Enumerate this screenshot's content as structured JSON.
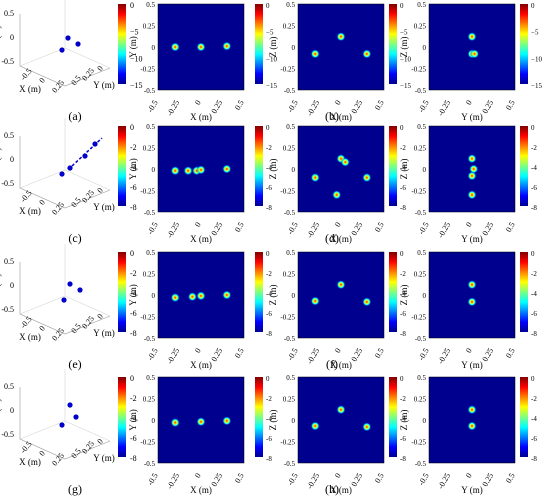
{
  "figure": {
    "rows": [
      {
        "id": "row-1",
        "labels": [
          "(a)",
          "(b)"
        ],
        "colorbar_ticks": [
          "0",
          "−5",
          "−10",
          "−15"
        ],
        "colorbar_range": [
          -15,
          0
        ],
        "projections": [
          {
            "xlabel": "X (m)",
            "ylabel": "Y (m)",
            "points": [
              [
                -0.3,
                0.0
              ],
              [
                0.0,
                0.0
              ],
              [
                0.3,
                0.01
              ]
            ]
          },
          {
            "xlabel": "X (m)",
            "ylabel": "Z (m)",
            "points": [
              [
                -0.3,
                -0.08
              ],
              [
                0.0,
                0.12
              ],
              [
                0.3,
                -0.08
              ]
            ]
          },
          {
            "xlabel": "Y (m)",
            "ylabel": "Z (m)",
            "points": [
              [
                0.0,
                0.12
              ],
              [
                0.0,
                -0.08
              ],
              [
                0.03,
                -0.08
              ]
            ]
          }
        ]
      },
      {
        "id": "row-2",
        "labels": [
          "(c)",
          "(d)"
        ],
        "colorbar_ticks": [
          "0",
          "-2",
          "-4",
          "-6",
          "-8"
        ],
        "colorbar_range": [
          -8,
          0
        ],
        "projections": [
          {
            "xlabel": "X (m)",
            "ylabel": "Y (m)",
            "points": [
              [
                -0.3,
                -0.02
              ],
              [
                -0.05,
                -0.02
              ],
              [
                0.0,
                -0.01
              ],
              [
                0.3,
                0.0
              ],
              [
                -0.15,
                -0.02
              ]
            ]
          },
          {
            "xlabel": "X (m)",
            "ylabel": "Z (m)",
            "points": [
              [
                -0.3,
                -0.1
              ],
              [
                0.0,
                0.12
              ],
              [
                0.3,
                -0.1
              ],
              [
                0.05,
                0.08
              ],
              [
                -0.05,
                -0.3
              ]
            ]
          },
          {
            "xlabel": "Y (m)",
            "ylabel": "Z (m)",
            "points": [
              [
                0.0,
                0.12
              ],
              [
                0.0,
                -0.08
              ],
              [
                0.02,
                0.0
              ],
              [
                0.0,
                -0.3
              ]
            ]
          }
        ]
      },
      {
        "id": "row-3",
        "labels": [
          "(e)",
          "(f)"
        ],
        "colorbar_ticks": [
          "0",
          "-2",
          "-4",
          "-6",
          "-8"
        ],
        "colorbar_range": [
          -8,
          0
        ],
        "projections": [
          {
            "xlabel": "X (m)",
            "ylabel": "Y (m)",
            "points": [
              [
                -0.3,
                -0.03
              ],
              [
                -0.1,
                -0.02
              ],
              [
                0.0,
                -0.01
              ],
              [
                0.3,
                0.0
              ]
            ]
          },
          {
            "xlabel": "X (m)",
            "ylabel": "Z (m)",
            "points": [
              [
                -0.3,
                -0.07
              ],
              [
                0.0,
                0.12
              ],
              [
                0.3,
                -0.08
              ]
            ]
          },
          {
            "xlabel": "Y (m)",
            "ylabel": "Z (m)",
            "points": [
              [
                0.0,
                0.12
              ],
              [
                0.0,
                -0.08
              ]
            ]
          }
        ]
      },
      {
        "id": "row-4",
        "labels": [
          "(g)",
          "(h)"
        ],
        "colorbar_ticks": [
          "0",
          "-2",
          "-4",
          "-6",
          "-8"
        ],
        "colorbar_range": [
          -8,
          0
        ],
        "projections": [
          {
            "xlabel": "X (m)",
            "ylabel": "Y (m)",
            "points": [
              [
                -0.3,
                -0.03
              ],
              [
                0.0,
                -0.02
              ],
              [
                0.3,
                -0.01
              ]
            ]
          },
          {
            "xlabel": "X (m)",
            "ylabel": "Z (m)",
            "points": [
              [
                -0.3,
                -0.07
              ],
              [
                0.0,
                0.12
              ],
              [
                0.3,
                -0.08
              ]
            ]
          },
          {
            "xlabel": "Y (m)",
            "ylabel": "Z (m)",
            "points": [
              [
                0.0,
                0.12
              ],
              [
                0.0,
                -0.07
              ]
            ]
          }
        ]
      }
    ],
    "view3d": {
      "xlabel": "X (m)",
      "ylabel": "Y (m)",
      "zlabel": "Z (m)",
      "xticks": [
        "-0.5",
        "0",
        "0.25"
      ],
      "yticks": [
        "0.5",
        "0.25",
        "0"
      ],
      "zticks": [
        "0.5",
        "0",
        "-0.5"
      ]
    },
    "map_ticks": [
      "-0.5",
      "-0.25",
      "0",
      "0.25",
      "0.5"
    ]
  },
  "chart_data": {
    "type": "heatmap",
    "description_units": "dB",
    "axis_range": [
      -0.5,
      0.5
    ],
    "colormap": "jet",
    "panels": [
      "(a)",
      "(b)",
      "(c)",
      "(d)",
      "(e)",
      "(f)",
      "(g)",
      "(h)"
    ]
  }
}
